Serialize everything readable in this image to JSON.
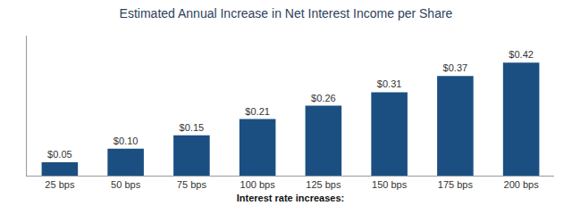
{
  "chart_data": {
    "type": "bar",
    "title": "Estimated Annual Increase in Net Interest Income per Share",
    "xlabel": "Interest rate increases:",
    "categories": [
      "25 bps",
      "50 bps",
      "75 bps",
      "100 bps",
      "125 bps",
      "150 bps",
      "175 bps",
      "200 bps"
    ],
    "values": [
      0.05,
      0.1,
      0.15,
      0.21,
      0.26,
      0.31,
      0.37,
      0.42
    ],
    "value_labels": [
      "$0.05",
      "$0.10",
      "$0.15",
      "$0.21",
      "$0.26",
      "$0.31",
      "$0.37",
      "$0.42"
    ],
    "data_labels": true,
    "color": "#1b4f82",
    "ylim": [
      0,
      0.52
    ],
    "grid": false,
    "tick_labels": "x"
  }
}
